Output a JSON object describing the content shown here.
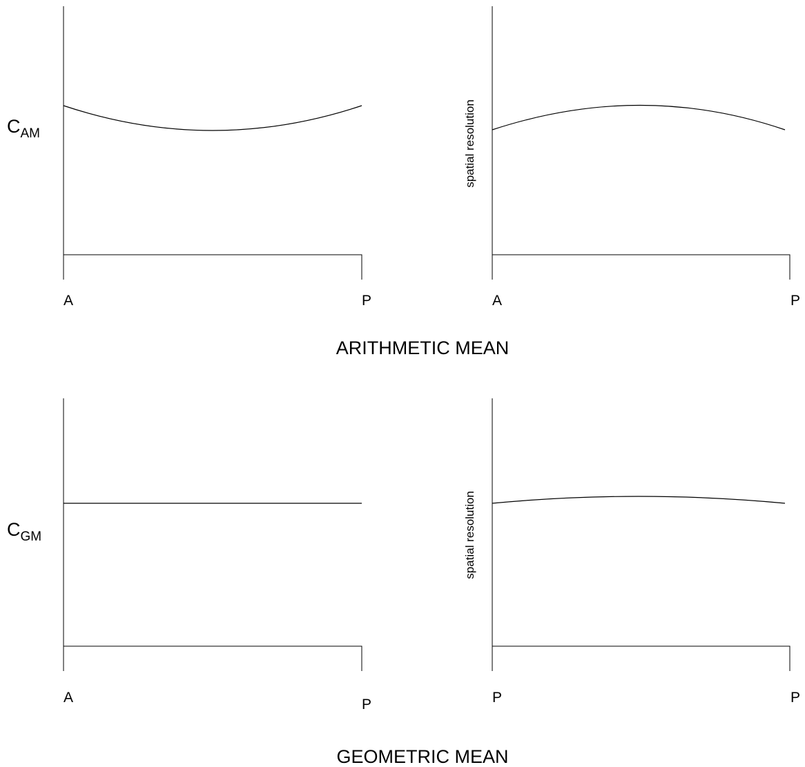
{
  "sections": [
    {
      "title": "ARITHMETIC MEAN"
    },
    {
      "title": "GEOMETRIC MEAN"
    }
  ],
  "panels": [
    {
      "id": "am-left",
      "ylabel": {
        "main": "C",
        "sub": "AM"
      },
      "x_start": "A",
      "x_end": "P",
      "curve": {
        "shape": "concave-up"
      }
    },
    {
      "id": "am-right",
      "ylabel": {
        "text": "spatial resolution"
      },
      "x_start": "A",
      "x_end": "P",
      "curve": {
        "shape": "concave-down"
      }
    },
    {
      "id": "gm-left",
      "ylabel": {
        "main": "C",
        "sub": "GM"
      },
      "x_start": "A",
      "x_end": "P",
      "curve": {
        "shape": "flat"
      }
    },
    {
      "id": "gm-right",
      "ylabel": {
        "text": "spatial resolution"
      },
      "x_start": "P",
      "x_end": "P",
      "curve": {
        "shape": "slight-concave-down"
      }
    }
  ],
  "colors": {
    "line": "#000000",
    "background": "#ffffff"
  }
}
